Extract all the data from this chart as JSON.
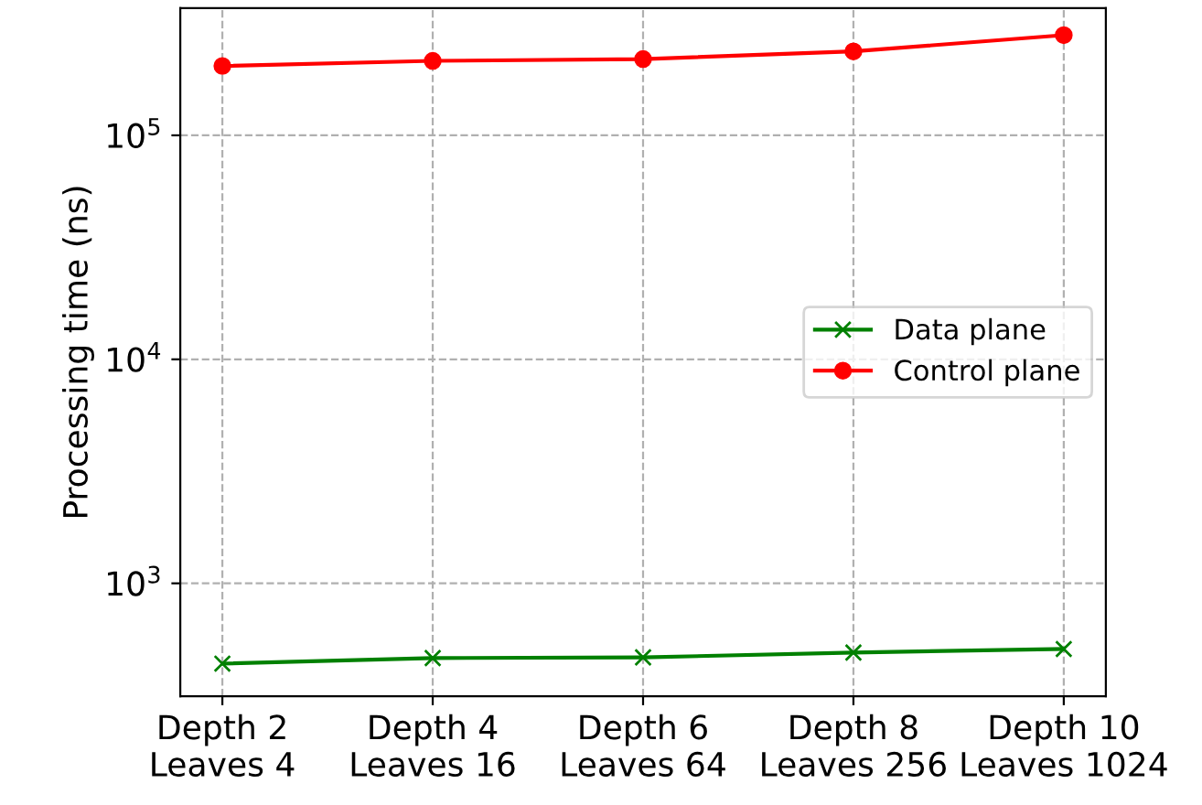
{
  "chart_data": {
    "type": "line",
    "ylabel": "Processing time (ns)",
    "categories": [
      "Depth 2\nLeaves 4",
      "Depth 4\nLeaves 16",
      "Depth 6\nLeaves 64",
      "Depth 8\nLeaves 256",
      "Depth 10\nLeaves 1024"
    ],
    "series": [
      {
        "name": "Data plane",
        "color": "#008000",
        "marker": "cross",
        "values": [
          438,
          464,
          467,
          491,
          509
        ]
      },
      {
        "name": "Control plane",
        "color": "#ff0000",
        "marker": "circle",
        "values": [
          204000,
          215000,
          219000,
          237000,
          280000
        ]
      }
    ],
    "log": "y",
    "ylim": [
      313,
      370000
    ],
    "yticks": [
      {
        "value": 1000,
        "label": "10$^{3}$"
      },
      {
        "value": 10000,
        "label": "10$^{4}$"
      },
      {
        "value": 100000,
        "label": "10$^{5}$"
      }
    ],
    "grid": true,
    "legend": "right",
    "line_style": "solid"
  }
}
